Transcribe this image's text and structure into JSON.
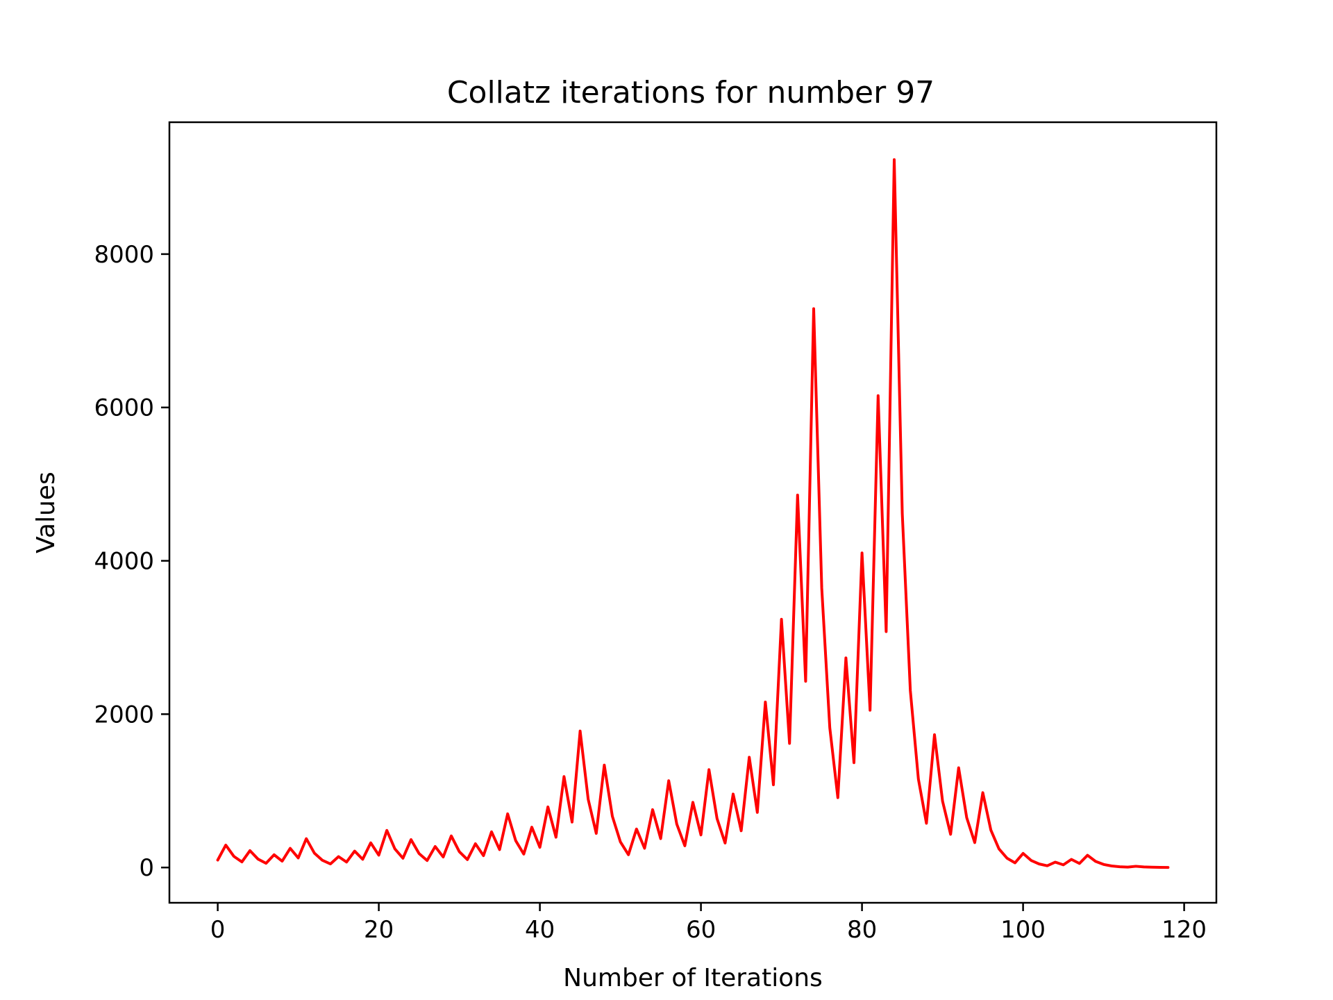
{
  "chart_data": {
    "type": "line",
    "title": "Collatz iterations for number 97",
    "xlabel": "Number of Iterations",
    "ylabel": "Values",
    "xlim": [
      -6,
      124
    ],
    "ylim": [
      -460,
      9720
    ],
    "xticks": [
      0,
      20,
      40,
      60,
      80,
      100,
      120
    ],
    "yticks": [
      0,
      2000,
      4000,
      6000,
      8000
    ],
    "grid": false,
    "legend": "none",
    "series": [
      {
        "color": "#ff0000",
        "x": [
          0,
          1,
          2,
          3,
          4,
          5,
          6,
          7,
          8,
          9,
          10,
          11,
          12,
          13,
          14,
          15,
          16,
          17,
          18,
          19,
          20,
          21,
          22,
          23,
          24,
          25,
          26,
          27,
          28,
          29,
          30,
          31,
          32,
          33,
          34,
          35,
          36,
          37,
          38,
          39,
          40,
          41,
          42,
          43,
          44,
          45,
          46,
          47,
          48,
          49,
          50,
          51,
          52,
          53,
          54,
          55,
          56,
          57,
          58,
          59,
          60,
          61,
          62,
          63,
          64,
          65,
          66,
          67,
          68,
          69,
          70,
          71,
          72,
          73,
          74,
          75,
          76,
          77,
          78,
          79,
          80,
          81,
          82,
          83,
          84,
          85,
          86,
          87,
          88,
          89,
          90,
          91,
          92,
          93,
          94,
          95,
          96,
          97,
          98,
          99,
          100,
          101,
          102,
          103,
          104,
          105,
          106,
          107,
          108,
          109,
          110,
          111,
          112,
          113,
          114,
          115,
          116,
          117,
          118
        ],
        "y": [
          97,
          292,
          146,
          73,
          220,
          110,
          55,
          166,
          83,
          250,
          125,
          376,
          188,
          94,
          47,
          142,
          71,
          214,
          107,
          322,
          161,
          484,
          242,
          121,
          364,
          182,
          91,
          274,
          137,
          412,
          206,
          103,
          310,
          155,
          466,
          233,
          700,
          350,
          175,
          526,
          263,
          790,
          395,
          1186,
          593,
          1780,
          890,
          445,
          1336,
          668,
          334,
          167,
          502,
          251,
          754,
          377,
          1132,
          566,
          283,
          850,
          425,
          1276,
          638,
          319,
          958,
          479,
          1438,
          719,
          2158,
          1079,
          3238,
          1619,
          4858,
          2429,
          7288,
          3644,
          1822,
          911,
          2734,
          1367,
          4102,
          2051,
          6154,
          3077,
          9232,
          4616,
          2308,
          1154,
          577,
          1732,
          866,
          433,
          1300,
          650,
          325,
          976,
          488,
          244,
          122,
          61,
          184,
          92,
          46,
          23,
          70,
          35,
          106,
          53,
          160,
          80,
          40,
          20,
          10,
          5,
          16,
          8,
          4,
          2,
          1
        ]
      }
    ]
  }
}
